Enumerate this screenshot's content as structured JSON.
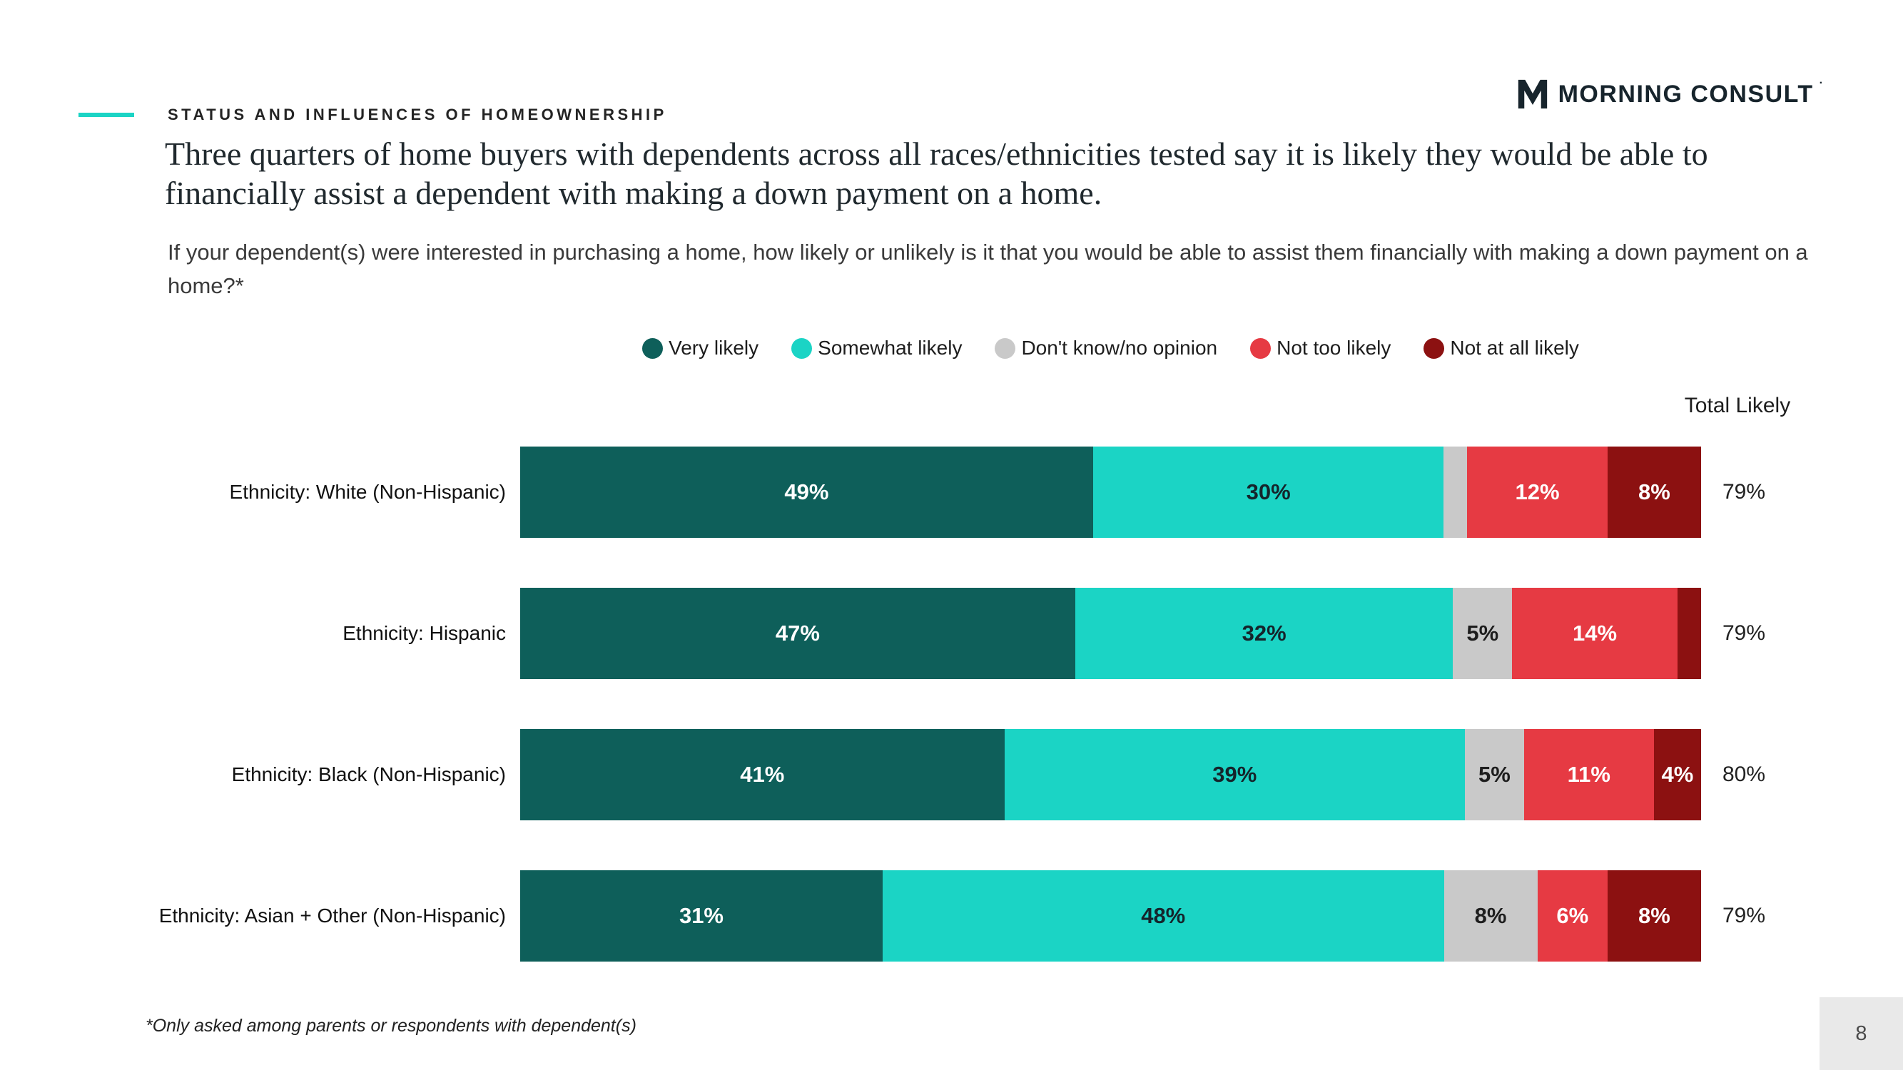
{
  "page": {
    "page_number": "8"
  },
  "header": {
    "eyebrow": "STATUS AND INFLUENCES OF HOMEOWNERSHIP",
    "title": "Three quarters of home buyers with dependents across all races/ethnicities tested say it is likely they would be able to financially assist a dependent with making a down payment on a home.",
    "subtitle": "If your dependent(s) were interested in purchasing a home, how likely or unlikely is it that you would be able to assist them financially with making a down payment on a home?*",
    "accent_color": "#1bd4c5"
  },
  "logo": {
    "text": "MORNING CONSULT",
    "mark": "·"
  },
  "chart_data": {
    "type": "bar",
    "variant": "horizontal-stacked",
    "unit": "percent",
    "title": "Likelihood of financially assisting a dependent with a down payment, by ethnicity",
    "legend": [
      {
        "key": "very-likely",
        "label": "Very likely",
        "color": "#0e5f5a",
        "label_color": "#ffffff"
      },
      {
        "key": "somewhat-likely",
        "label": "Somewhat likely",
        "color": "#1bd4c5",
        "label_color": "#15242b"
      },
      {
        "key": "dont-know-no-opinion",
        "label": "Don't know/no opinion",
        "color": "#c9c9c9",
        "label_color": "#1d1d1d"
      },
      {
        "key": "not-too-likely",
        "label": "Not too likely",
        "color": "#e63a43",
        "label_color": "#ffffff"
      },
      {
        "key": "not-at-all-likely",
        "label": "Not at all likely",
        "color": "#8c1111",
        "label_color": "#ffffff"
      }
    ],
    "total_likely_header": "Total Likely",
    "rows": [
      {
        "category": "Ethnicity: White (Non-Hispanic)",
        "values": [
          49,
          30,
          2,
          12,
          8
        ],
        "labels": [
          "49%",
          "30%",
          "",
          "12%",
          "8%"
        ],
        "total_likely": "79%"
      },
      {
        "category": "Ethnicity: Hispanic",
        "values": [
          47,
          32,
          5,
          14,
          2
        ],
        "labels": [
          "47%",
          "32%",
          "5%",
          "14%",
          ""
        ],
        "total_likely": "79%"
      },
      {
        "category": "Ethnicity: Black (Non-Hispanic)",
        "values": [
          41,
          39,
          5,
          11,
          4
        ],
        "labels": [
          "41%",
          "39%",
          "5%",
          "11%",
          "4%"
        ],
        "total_likely": "80%"
      },
      {
        "category": "Ethnicity: Asian + Other (Non-Hispanic)",
        "values": [
          31,
          48,
          8,
          6,
          8
        ],
        "labels": [
          "31%",
          "48%",
          "8%",
          "6%",
          "8%"
        ],
        "total_likely": "79%"
      }
    ]
  },
  "footnote": "*Only asked among parents or respondents with dependent(s)"
}
